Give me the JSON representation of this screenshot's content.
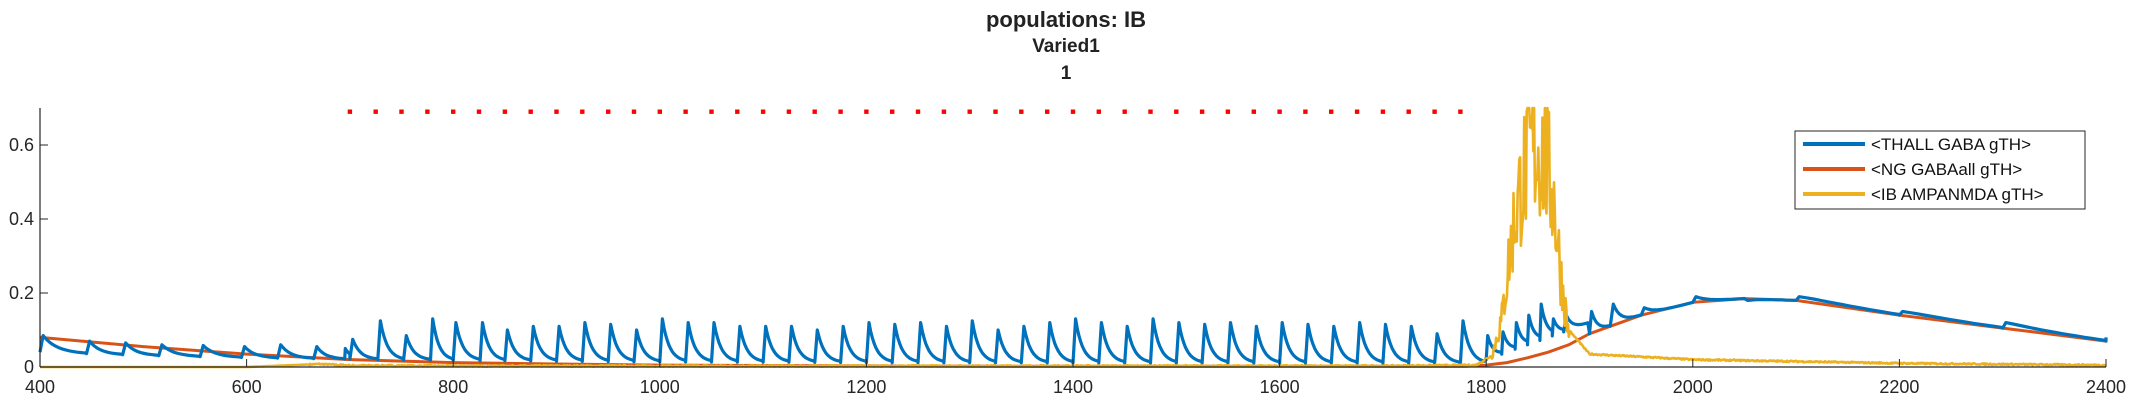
{
  "chart_data": {
    "type": "line",
    "title": "populations: IB",
    "subtitle": "Varied1",
    "subtitle2": "1",
    "xlabel": "",
    "ylabel": "",
    "xlim": [
      400,
      2400
    ],
    "ylim": [
      0,
      0.7
    ],
    "xticks": [
      400,
      600,
      800,
      1000,
      1200,
      1400,
      1600,
      1800,
      2000,
      2200,
      2400
    ],
    "yticks": [
      0,
      0.2,
      0.4,
      0.6
    ],
    "xtick_labels": [
      "400",
      "600",
      "800",
      "1000",
      "1200",
      "1400",
      "1600",
      "1800",
      "2000",
      "2200",
      "2400"
    ],
    "ytick_labels": [
      "0",
      "0.2",
      "0.4",
      "0.6"
    ],
    "grid": false,
    "legend_position": "top-right",
    "colors": {
      "thall": "#0072BD",
      "ng": "#D95319",
      "ib": "#EDB120",
      "markers": "#FF0000"
    },
    "series": [
      {
        "name": "<THALL GABA gTH>",
        "color": "#0072BD",
        "x": [
          400,
          445,
          480,
          515,
          555,
          595,
          630,
          665,
          695,
          700,
          727,
          752,
          778,
          800,
          826,
          850,
          875,
          900,
          925,
          950,
          975,
          1000,
          1025,
          1050,
          1075,
          1100,
          1125,
          1150,
          1175,
          1200,
          1225,
          1250,
          1275,
          1300,
          1325,
          1350,
          1375,
          1400,
          1425,
          1450,
          1475,
          1500,
          1525,
          1550,
          1575,
          1600,
          1625,
          1650,
          1675,
          1700,
          1725,
          1750,
          1775,
          1800,
          1815,
          1828,
          1840,
          1852,
          1864,
          1875,
          1900,
          1920,
          1950,
          2000,
          2050,
          2100,
          2200,
          2300,
          2400
        ],
        "peaks": [
          0.085,
          0.07,
          0.065,
          0.06,
          0.058,
          0.055,
          0.06,
          0.055,
          0.05,
          0.075,
          0.125,
          0.085,
          0.13,
          0.12,
          0.12,
          0.1,
          0.11,
          0.11,
          0.12,
          0.115,
          0.1,
          0.13,
          0.12,
          0.12,
          0.11,
          0.11,
          0.11,
          0.1,
          0.11,
          0.12,
          0.115,
          0.12,
          0.11,
          0.125,
          0.1,
          0.11,
          0.12,
          0.13,
          0.12,
          0.11,
          0.13,
          0.12,
          0.115,
          0.12,
          0.11,
          0.12,
          0.115,
          0.11,
          0.12,
          0.115,
          0.11,
          0.09,
          0.125,
          0.085,
          0.095,
          0.12,
          0.14,
          0.17,
          0.13,
          0.14,
          0.15,
          0.17,
          0.16,
          0.19,
          0.18,
          0.19,
          0.15,
          0.12,
          0.08
        ]
      },
      {
        "name": "<NG GABAall gTH>",
        "color": "#D95319",
        "x": [
          400,
          500,
          600,
          700,
          800,
          900,
          1000,
          1200,
          1400,
          1600,
          1780,
          1800,
          1820,
          1840,
          1860,
          1880,
          1900,
          1950,
          2000,
          2050,
          2100,
          2200,
          2300,
          2400
        ],
        "values": [
          0.08,
          0.055,
          0.035,
          0.02,
          0.012,
          0.008,
          0.005,
          0.003,
          0.002,
          0.002,
          0.002,
          0.005,
          0.012,
          0.025,
          0.04,
          0.06,
          0.09,
          0.14,
          0.175,
          0.185,
          0.18,
          0.14,
          0.105,
          0.07
        ]
      },
      {
        "name": "<IB AMPANMDA gTH>",
        "color": "#EDB120",
        "x": [
          400,
          600,
          670,
          700,
          800,
          900,
          1000,
          1100,
          1200,
          1300,
          1400,
          1500,
          1600,
          1700,
          1790,
          1805,
          1815,
          1825,
          1835,
          1845,
          1855,
          1865,
          1872,
          1880,
          1900,
          2000,
          2200,
          2400
        ],
        "values": [
          0,
          0,
          0.008,
          0.004,
          0.003,
          0.003,
          0.003,
          0.003,
          0.003,
          0.003,
          0.003,
          0.003,
          0.003,
          0.003,
          0.005,
          0.03,
          0.15,
          0.42,
          0.6,
          0.7,
          0.68,
          0.55,
          0.3,
          0.1,
          0.035,
          0.02,
          0.01,
          0.005
        ]
      }
    ],
    "stimulus_markers": {
      "y": 0.69,
      "x_start": 700,
      "x_end": 1780,
      "step": 25
    }
  }
}
